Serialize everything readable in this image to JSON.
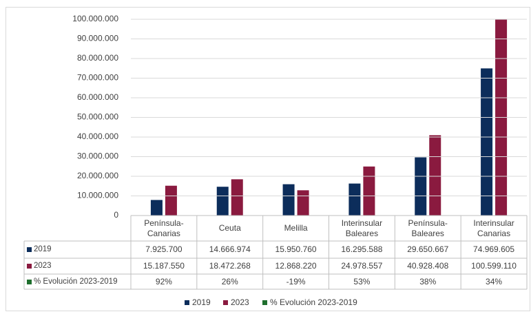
{
  "chart_data": {
    "type": "bar",
    "categories": [
      "Península-Canarias",
      "Ceuta",
      "Melilla",
      "Interinsular Baleares",
      "Península-Baleares",
      "Interinsular Canarias"
    ],
    "series": [
      {
        "name": "2019",
        "color": "#0c2d5b",
        "values": [
          7925700,
          14666974,
          15950760,
          16295588,
          29650667,
          74969605
        ],
        "value_labels": [
          "7.925.700",
          "14.666.974",
          "15.950.760",
          "16.295.588",
          "29.650.667",
          "74.969.605"
        ]
      },
      {
        "name": "2023",
        "color": "#8a1a3f",
        "values": [
          15187550,
          18472268,
          12868220,
          24978557,
          40928408,
          100599110
        ],
        "value_labels": [
          "15.187.550",
          "18.472.268",
          "12.868.220",
          "24.978.557",
          "40.928.408",
          "100.599.110"
        ]
      },
      {
        "name": "% Evolución 2023-2019",
        "color": "#1f6f2e",
        "values": [
          92,
          26,
          -19,
          53,
          38,
          34
        ],
        "value_labels": [
          "92%",
          "26%",
          "-19%",
          "53%",
          "38%",
          "34%"
        ]
      }
    ],
    "ylim": [
      0,
      100000000
    ],
    "yticks": [
      0,
      {
        "value": 10000000,
        "label": "10.000.000"
      },
      {
        "value": 20000000,
        "label": "20.000.000"
      },
      {
        "value": 30000000,
        "label": "30.000.000"
      },
      {
        "value": 40000000,
        "label": "40.000.000"
      },
      {
        "value": 50000000,
        "label": "50.000.000"
      },
      {
        "value": 60000000,
        "label": "60.000.000"
      },
      {
        "value": 70000000,
        "label": "70.000.000"
      },
      {
        "value": 80000000,
        "label": "80.000.000"
      },
      {
        "value": 90000000,
        "label": "90.000.000"
      },
      {
        "value": 100000000,
        "label": "100.000.000"
      }
    ],
    "grid": true,
    "legend": "bottom"
  }
}
